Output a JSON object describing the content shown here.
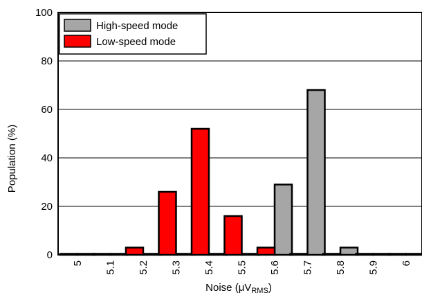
{
  "chart_data": {
    "type": "bar",
    "xlabel": "Noise",
    "xlabel_unit_prefix": "μV",
    "xlabel_unit_sub": "RMS",
    "ylabel": "Population (%)",
    "ylim": [
      0,
      100
    ],
    "yticks": [
      0,
      20,
      40,
      60,
      80,
      100
    ],
    "categories": [
      "5",
      "5.1",
      "5.2",
      "5.3",
      "5.4",
      "5.5",
      "5.6",
      "5.7",
      "5.8",
      "5.9",
      "6"
    ],
    "series": [
      {
        "name": "High-speed mode",
        "color": "#a6a6a6",
        "values": [
          0,
          0,
          0,
          0,
          0,
          0,
          29,
          68,
          3,
          0,
          0
        ]
      },
      {
        "name": "Low-speed mode",
        "color": "#ff0000",
        "values": [
          0,
          0,
          3,
          26,
          52,
          16,
          3,
          0,
          0,
          0,
          0
        ]
      }
    ],
    "grid": "horizontal",
    "legend_position": "top-left"
  }
}
